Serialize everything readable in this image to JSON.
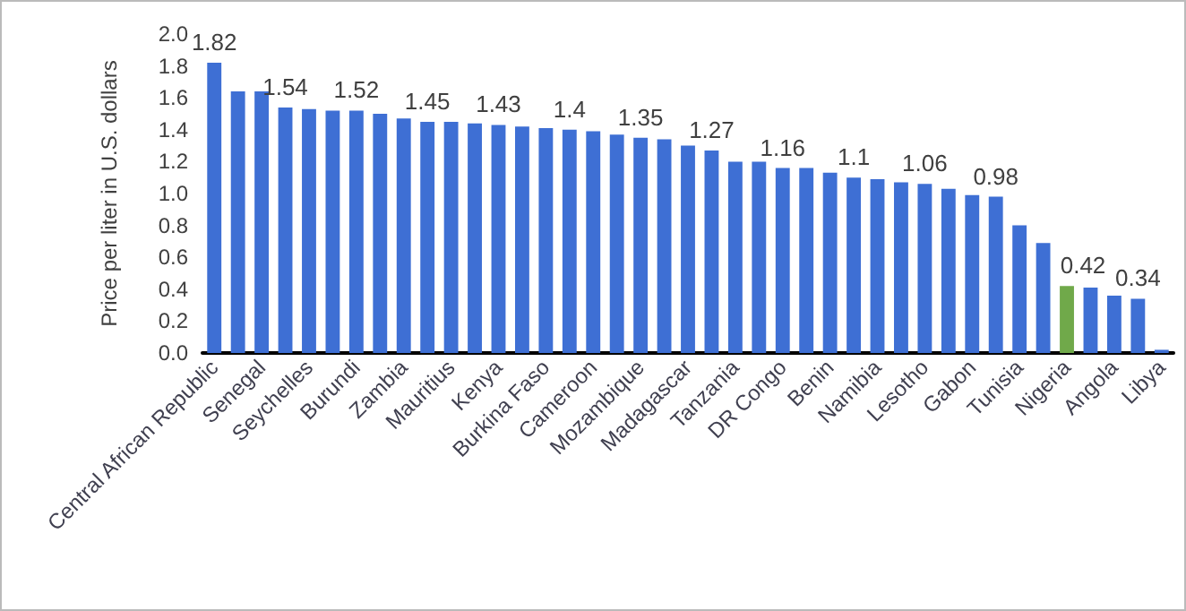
{
  "chart_data": {
    "type": "bar",
    "ylabel": "Price per liter in U.S. dollars",
    "categories": [
      "Central African Republic",
      null,
      "Senegal",
      null,
      "Seychelles",
      null,
      "Burundi",
      null,
      "Zambia",
      null,
      "Mauritius",
      null,
      "Kenya",
      null,
      "Burkina Faso",
      null,
      "Cameroon",
      null,
      "Mozambique",
      null,
      "Madagascar",
      null,
      "Tanzania",
      null,
      "DR Congo",
      null,
      "Benin",
      null,
      "Namibia",
      null,
      "Lesotho",
      null,
      "Gabon",
      null,
      "Tunisia",
      null,
      "Nigeria",
      null,
      "Angola",
      null,
      "Libya"
    ],
    "values": [
      1.82,
      1.64,
      1.64,
      1.54,
      1.53,
      1.52,
      1.52,
      1.5,
      1.47,
      1.45,
      1.45,
      1.44,
      1.43,
      1.42,
      1.41,
      1.4,
      1.39,
      1.37,
      1.35,
      1.34,
      1.3,
      1.27,
      1.2,
      1.2,
      1.16,
      1.16,
      1.13,
      1.1,
      1.09,
      1.07,
      1.06,
      1.03,
      0.99,
      0.98,
      0.8,
      0.69,
      0.42,
      0.41,
      0.36,
      0.34,
      0.02
    ],
    "value_labels": [
      "1.82",
      null,
      null,
      "1.54",
      null,
      null,
      "1.52",
      null,
      null,
      "1.45",
      null,
      null,
      "1.43",
      null,
      null,
      "1.4",
      null,
      null,
      "1.35",
      null,
      null,
      "1.27",
      null,
      null,
      "1.16",
      null,
      null,
      "1.1",
      null,
      null,
      "1.06",
      null,
      null,
      "0.98",
      null,
      null,
      "0.42",
      null,
      null,
      "0.34",
      null
    ],
    "colors": [
      "#3e6fd4",
      "#3e6fd4",
      "#3e6fd4",
      "#3e6fd4",
      "#3e6fd4",
      "#3e6fd4",
      "#3e6fd4",
      "#3e6fd4",
      "#3e6fd4",
      "#3e6fd4",
      "#3e6fd4",
      "#3e6fd4",
      "#3e6fd4",
      "#3e6fd4",
      "#3e6fd4",
      "#3e6fd4",
      "#3e6fd4",
      "#3e6fd4",
      "#3e6fd4",
      "#3e6fd4",
      "#3e6fd4",
      "#3e6fd4",
      "#3e6fd4",
      "#3e6fd4",
      "#3e6fd4",
      "#3e6fd4",
      "#3e6fd4",
      "#3e6fd4",
      "#3e6fd4",
      "#3e6fd4",
      "#3e6fd4",
      "#3e6fd4",
      "#3e6fd4",
      "#3e6fd4",
      "#3e6fd4",
      "#3e6fd4",
      "#70a94a",
      "#3e6fd4",
      "#3e6fd4",
      "#3e6fd4",
      "#3e6fd4"
    ],
    "ylim": [
      0,
      2
    ],
    "yticks": [
      {
        "value": 0,
        "label": "0.0"
      },
      0.2,
      0.4,
      0.6,
      0.8,
      {
        "value": 1,
        "label": "1.0"
      },
      1.2,
      1.4,
      1.6,
      1.8,
      {
        "value": 2,
        "label": "2.0"
      }
    ],
    "grid": false
  }
}
